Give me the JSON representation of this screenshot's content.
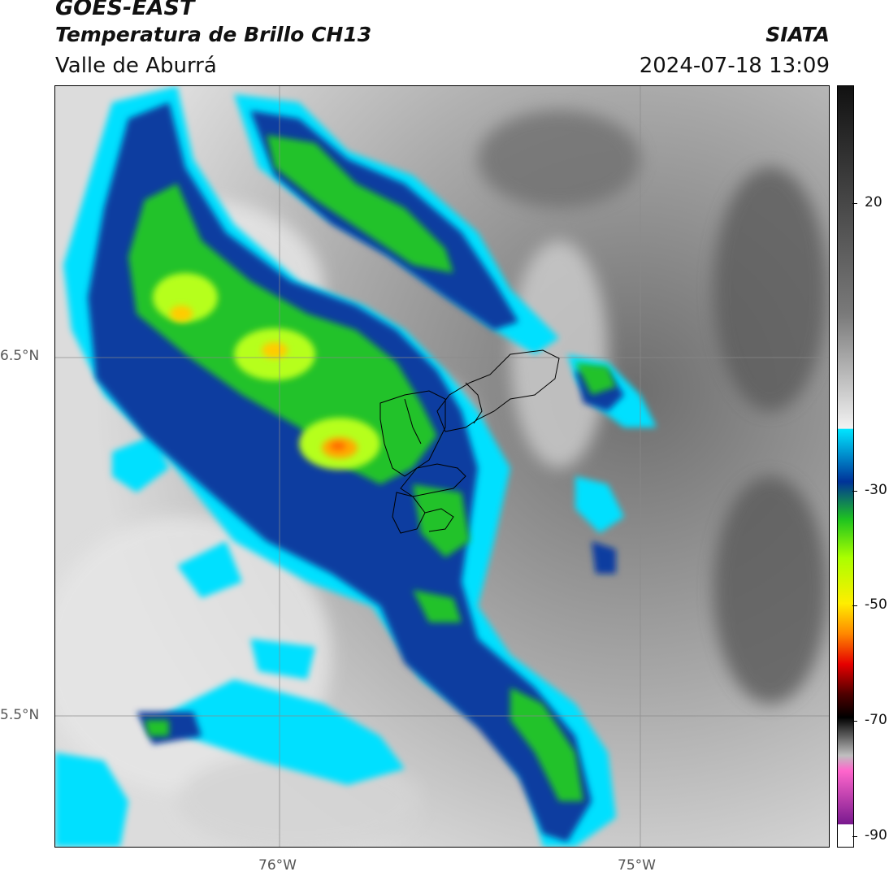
{
  "header": {
    "satellite": "GOES-EAST",
    "product": "Temperatura de Brillo CH13",
    "region": "Valle de Aburrá",
    "brand": "SIATA",
    "timestamp": "2024-07-18 13:09"
  },
  "axes": {
    "y_ticks": [
      "6.5°N",
      "5.5°N"
    ],
    "x_ticks": [
      "76°W",
      "75°W"
    ]
  },
  "colorbar": {
    "ticks": [
      "20",
      "-30",
      "-50",
      "-70",
      "-90"
    ],
    "colors": {
      "warm_top": "#111111",
      "warm_mid": "#7a7a7a",
      "warm_low": "#f2f2f2",
      "cyan": "#00e5ff",
      "blue": "#003399",
      "green": "#1fc41f",
      "lime": "#aaff00",
      "yellow": "#ffee00",
      "orange": "#ff8800",
      "red": "#e60000",
      "darkred": "#4d0000",
      "black": "#000000",
      "pink": "#ff66cc",
      "purple": "#7a1a8f"
    }
  }
}
